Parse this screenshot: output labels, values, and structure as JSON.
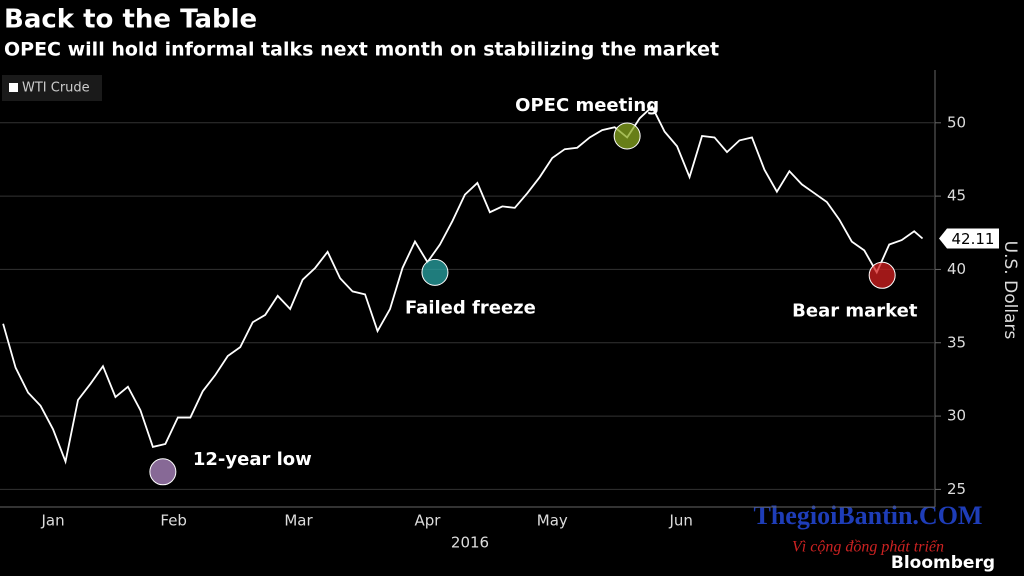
{
  "chart_data": {
    "type": "line",
    "title": "Back to the Table",
    "subtitle": "OPEC will hold informal talks next month on stabilizing the market",
    "x_label": "2016",
    "y_label": "U.S. Dollars",
    "source": "Bloomberg",
    "watermark": [
      "ThegioiBantin.COM",
      "Vì cộng đồng phát triển"
    ],
    "legend": "top-left",
    "grid": true,
    "x": [
      4,
      7,
      10,
      13,
      16,
      19,
      22,
      25,
      28,
      31,
      34,
      37,
      40,
      43,
      46,
      49,
      52,
      55,
      58,
      61,
      64,
      67,
      70,
      73,
      76,
      79,
      82,
      85,
      88,
      91,
      94,
      97,
      100,
      103,
      106,
      109,
      112,
      115,
      118,
      121,
      124,
      127,
      130,
      133,
      136,
      139,
      142,
      145,
      148,
      151,
      154,
      157,
      160,
      163,
      166,
      169,
      172,
      175,
      178,
      181,
      184,
      187,
      190,
      193,
      196,
      199,
      202,
      205,
      208,
      211,
      214,
      217,
      220,
      223,
      225
    ],
    "series": [
      {
        "name": "WTI Crude",
        "color": "#ffffff",
        "values": [
          36.3,
          33.3,
          31.6,
          30.7,
          29.1,
          26.9,
          31.1,
          32.2,
          33.4,
          31.3,
          32.0,
          30.4,
          27.9,
          28.1,
          29.9,
          29.9,
          31.7,
          32.8,
          34.1,
          34.7,
          36.4,
          36.9,
          38.2,
          37.3,
          39.3,
          40.1,
          41.2,
          39.4,
          38.5,
          38.3,
          35.8,
          37.3,
          40.1,
          41.9,
          40.5,
          41.7,
          43.3,
          45.1,
          45.9,
          43.9,
          44.3,
          44.2,
          45.2,
          46.3,
          47.6,
          48.2,
          48.3,
          49.0,
          49.5,
          49.7,
          49.0,
          50.3,
          51.1,
          49.4,
          48.4,
          46.3,
          49.1,
          49.0,
          48.0,
          48.8,
          49.0,
          46.8,
          45.3,
          46.7,
          45.8,
          45.2,
          44.6,
          43.4,
          41.9,
          41.3,
          39.8,
          41.7,
          42.0,
          42.6,
          42.11
        ]
      }
    ],
    "xlim": [
      3.25,
      228
    ],
    "xticks": [
      {
        "value": 16,
        "label": "Jan"
      },
      {
        "value": 45,
        "label": "Feb"
      },
      {
        "value": 75,
        "label": "Mar"
      },
      {
        "value": 106,
        "label": "Apr"
      },
      {
        "value": 136,
        "label": "May"
      },
      {
        "value": 167,
        "label": "Jun"
      }
    ],
    "ylim": [
      23.8,
      53.6
    ],
    "yticks": [
      25,
      30,
      35,
      40,
      45,
      50
    ],
    "annotations": [
      {
        "text": "12-year low",
        "x": 42.4,
        "y": 26.2,
        "color": "#b48cc8"
      },
      {
        "text": "Failed freeze",
        "x": 107.8,
        "y": 39.8,
        "color": "#2aa6a6"
      },
      {
        "text": "OPEC meeting",
        "x": 154,
        "y": 49.1,
        "color": "#8aa820"
      },
      {
        "text": "Bear market",
        "x": 215.3,
        "y": 39.6,
        "color": "#d42020"
      }
    ]
  }
}
